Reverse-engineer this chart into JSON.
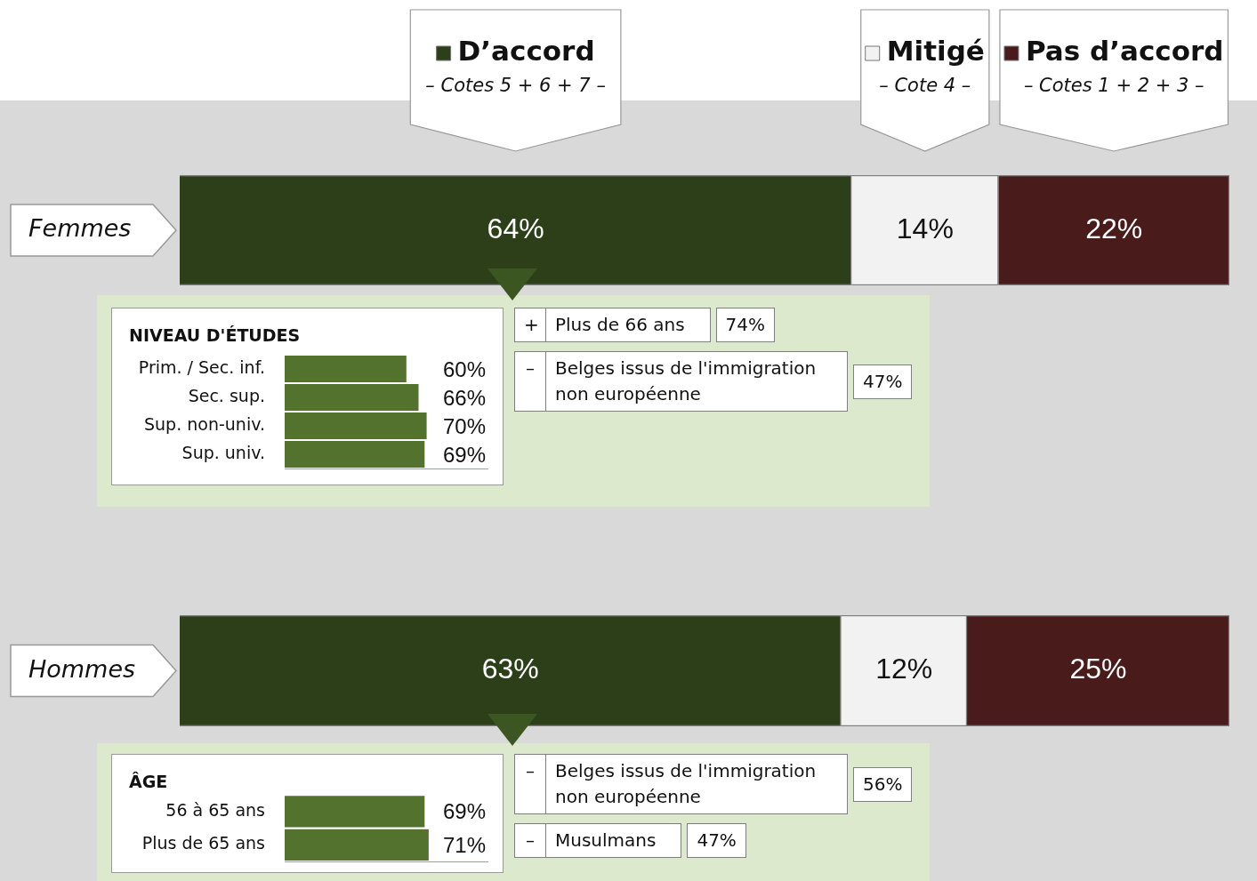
{
  "chart_data": [
    {
      "type": "bar",
      "orientation": "horizontal",
      "stacked": true,
      "categories": [
        "Femmes"
      ],
      "xlim": [
        0,
        100
      ],
      "tick_labels": "y",
      "legend": "top",
      "annotations": [
        "– Cotes 5 + 6 + 7 –",
        "– Cote 4 –",
        "– Cotes 1 + 2 + 3 –"
      ],
      "series": [
        {
          "name": "D’accord",
          "color": "#2c3f19",
          "values": [
            64
          ],
          "value_labels": [
            "64%"
          ]
        },
        {
          "name": "Mitigé",
          "color": "#f2f2f2",
          "values": [
            14
          ],
          "value_labels": [
            "14%"
          ]
        },
        {
          "name": "Pas d’accord",
          "color": "#4a1b1b",
          "values": [
            22
          ],
          "value_labels": [
            "22%"
          ]
        }
      ]
    },
    {
      "type": "bar",
      "orientation": "horizontal",
      "title": "NIVEAU D'ÉTUDES",
      "categories": [
        "Prim. / Sec. inf.",
        "Sec. sup.",
        "Sup. non-univ.",
        "Sup. univ."
      ],
      "values": [
        60,
        66,
        70,
        69
      ],
      "value_labels": [
        "60%",
        "66%",
        "70%",
        "69%"
      ],
      "color": "#53722d",
      "xlim": [
        0,
        100
      ],
      "tick_labels": "y"
    },
    {
      "type": "other",
      "categories": [
        "Plus de 66 ans",
        "Belges issus de l'immigration non européenne"
      ],
      "value_labels": [
        "74%",
        "47%"
      ],
      "annotations": [
        "+",
        "–"
      ]
    },
    {
      "type": "bar",
      "orientation": "horizontal",
      "stacked": true,
      "categories": [
        "Hommes"
      ],
      "xlim": [
        0,
        100
      ],
      "tick_labels": "y",
      "series": [
        {
          "color": "#2c3f19",
          "values": [
            63
          ],
          "value_labels": [
            "63%"
          ]
        },
        {
          "color": "#f2f2f2",
          "values": [
            12
          ],
          "value_labels": [
            "12%"
          ]
        },
        {
          "color": "#4a1b1b",
          "values": [
            25
          ],
          "value_labels": [
            "25%"
          ]
        }
      ]
    },
    {
      "type": "bar",
      "orientation": "horizontal",
      "title": "ÂGE",
      "categories": [
        "56 à 65 ans",
        "Plus de 65 ans"
      ],
      "values": [
        69,
        71
      ],
      "value_labels": [
        "69%",
        "71%"
      ],
      "color": "#53722d",
      "xlim": [
        0,
        100
      ],
      "tick_labels": "y"
    },
    {
      "type": "other",
      "categories": [
        "Belges issus de l'immigration non européenne",
        "Musulmans"
      ],
      "value_labels": [
        "56%",
        "47%"
      ],
      "annotations": [
        "–",
        "–"
      ]
    }
  ]
}
